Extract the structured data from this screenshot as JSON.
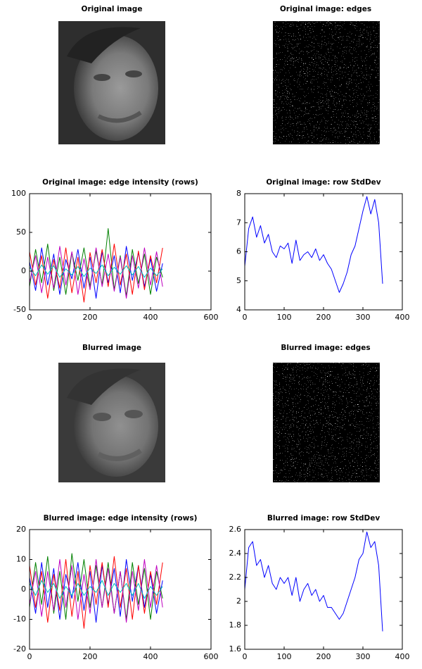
{
  "images": [
    {
      "title": "Original image"
    },
    {
      "title": "Original image: edges"
    },
    {
      "title": "Blurred image"
    },
    {
      "title": "Blurred image: edges"
    }
  ],
  "chart_data": [
    {
      "type": "line",
      "title": "Original image:  edge intensity (rows)",
      "x": [
        0,
        20,
        40,
        60,
        80,
        100,
        120,
        140,
        160,
        180,
        200,
        220,
        240,
        260,
        280,
        300,
        320,
        340,
        360,
        380,
        400,
        420,
        440
      ],
      "series": [
        {
          "color": "#0000ff",
          "values": [
            12,
            -25,
            30,
            -18,
            22,
            -30,
            15,
            -10,
            28,
            -22,
            18,
            -35,
            25,
            -15,
            20,
            -28,
            32,
            -12,
            24,
            -20,
            16,
            -26,
            10
          ]
        },
        {
          "color": "#008000",
          "values": [
            -20,
            28,
            -15,
            35,
            -25,
            18,
            -30,
            24,
            -12,
            30,
            -20,
            26,
            -18,
            55,
            -24,
            20,
            -32,
            28,
            -16,
            22,
            -30,
            18,
            -8
          ]
        },
        {
          "color": "#ff0000",
          "values": [
            25,
            -18,
            20,
            -35,
            15,
            -22,
            30,
            -28,
            18,
            -40,
            24,
            -15,
            28,
            -20,
            35,
            -18,
            22,
            -30,
            26,
            -24,
            20,
            -15,
            30
          ]
        },
        {
          "color": "#bf00bf",
          "values": [
            -15,
            20,
            -28,
            18,
            -22,
            32,
            -18,
            25,
            -30,
            16,
            -24,
            30,
            -20,
            22,
            -26,
            18,
            -35,
            20,
            -22,
            30,
            -18,
            25,
            -20
          ]
        },
        {
          "color": "#00bfbf",
          "values": [
            5,
            -6,
            8,
            -4,
            7,
            -8,
            3,
            -5,
            6,
            -7,
            4,
            -3,
            8,
            -6,
            5,
            -4,
            7,
            -5,
            6,
            -8,
            4,
            -6,
            3
          ]
        }
      ],
      "xlim": [
        0,
        600
      ],
      "ylim": [
        -50,
        100
      ],
      "xticks": [
        0,
        200,
        400,
        600
      ],
      "yticks": [
        -50,
        0,
        50,
        100
      ]
    },
    {
      "type": "line",
      "title": "Original image: row StdDev",
      "x": [
        0,
        10,
        20,
        30,
        40,
        50,
        60,
        70,
        80,
        90,
        100,
        110,
        120,
        130,
        140,
        150,
        160,
        170,
        180,
        190,
        200,
        210,
        220,
        230,
        240,
        250,
        260,
        270,
        280,
        290,
        300,
        310,
        320,
        330,
        340,
        350
      ],
      "series": [
        {
          "color": "#0000ff",
          "values": [
            5.5,
            6.8,
            7.2,
            6.5,
            6.9,
            6.3,
            6.6,
            6.0,
            5.8,
            6.2,
            6.1,
            6.3,
            5.6,
            6.4,
            5.7,
            5.9,
            6.0,
            5.8,
            6.1,
            5.7,
            5.9,
            5.6,
            5.4,
            5.0,
            4.6,
            4.9,
            5.3,
            5.9,
            6.2,
            6.8,
            7.4,
            7.9,
            7.3,
            7.8,
            7.0,
            4.9
          ]
        }
      ],
      "xlim": [
        0,
        400
      ],
      "ylim": [
        4,
        8
      ],
      "xticks": [
        0,
        100,
        200,
        300,
        400
      ],
      "yticks": [
        4,
        5,
        6,
        7,
        8
      ]
    },
    {
      "type": "line",
      "title": "Blurred image:  edge intensity (rows)",
      "x": [
        0,
        20,
        40,
        60,
        80,
        100,
        120,
        140,
        160,
        180,
        200,
        220,
        240,
        260,
        280,
        300,
        320,
        340,
        360,
        380,
        400,
        420,
        440
      ],
      "series": [
        {
          "color": "#0000ff",
          "values": [
            4,
            -8,
            9,
            -6,
            7,
            -10,
            5,
            -3,
            9,
            -7,
            6,
            -11,
            8,
            -5,
            7,
            -9,
            10,
            -4,
            8,
            -6,
            5,
            -8,
            3
          ]
        },
        {
          "color": "#008000",
          "values": [
            -6,
            9,
            -5,
            11,
            -8,
            6,
            -10,
            12,
            -4,
            10,
            -6,
            8,
            -6,
            9,
            -8,
            6,
            -10,
            9,
            -5,
            7,
            -10,
            6,
            -3
          ]
        },
        {
          "color": "#ff0000",
          "values": [
            8,
            -6,
            6,
            -11,
            5,
            -7,
            10,
            -9,
            6,
            -13,
            8,
            -5,
            9,
            -6,
            11,
            -6,
            7,
            -10,
            8,
            -8,
            6,
            -5,
            9
          ]
        },
        {
          "color": "#bf00bf",
          "values": [
            -5,
            6,
            -9,
            6,
            -7,
            10,
            -6,
            8,
            -10,
            5,
            -8,
            10,
            -6,
            7,
            -8,
            6,
            -11,
            6,
            -7,
            10,
            -6,
            8,
            -6
          ]
        },
        {
          "color": "#00bfbf",
          "values": [
            2,
            -2,
            3,
            -1,
            2,
            -3,
            1,
            -2,
            2,
            -2,
            1,
            -1,
            3,
            -2,
            2,
            -1,
            2,
            -2,
            2,
            -3,
            1,
            -2,
            1
          ]
        }
      ],
      "xlim": [
        0,
        600
      ],
      "ylim": [
        -20,
        20
      ],
      "xticks": [
        0,
        200,
        400,
        600
      ],
      "yticks": [
        -20,
        -10,
        0,
        10,
        20
      ]
    },
    {
      "type": "line",
      "title": "Blurred image: row StdDev",
      "x": [
        0,
        10,
        20,
        30,
        40,
        50,
        60,
        70,
        80,
        90,
        100,
        110,
        120,
        130,
        140,
        150,
        160,
        170,
        180,
        190,
        200,
        210,
        220,
        230,
        240,
        250,
        260,
        270,
        280,
        290,
        300,
        310,
        320,
        330,
        340,
        350
      ],
      "series": [
        {
          "color": "#0000ff",
          "values": [
            2.1,
            2.45,
            2.5,
            2.3,
            2.35,
            2.2,
            2.3,
            2.15,
            2.1,
            2.2,
            2.15,
            2.2,
            2.05,
            2.2,
            2.0,
            2.1,
            2.15,
            2.05,
            2.1,
            2.0,
            2.05,
            1.95,
            1.95,
            1.9,
            1.85,
            1.9,
            2.0,
            2.1,
            2.2,
            2.35,
            2.4,
            2.58,
            2.45,
            2.5,
            2.3,
            1.75
          ]
        }
      ],
      "xlim": [
        0,
        400
      ],
      "ylim": [
        1.6,
        2.6
      ],
      "xticks": [
        0,
        100,
        200,
        300,
        400
      ],
      "yticks": [
        1.6,
        1.8,
        2,
        2.2,
        2.4,
        2.6
      ]
    }
  ]
}
